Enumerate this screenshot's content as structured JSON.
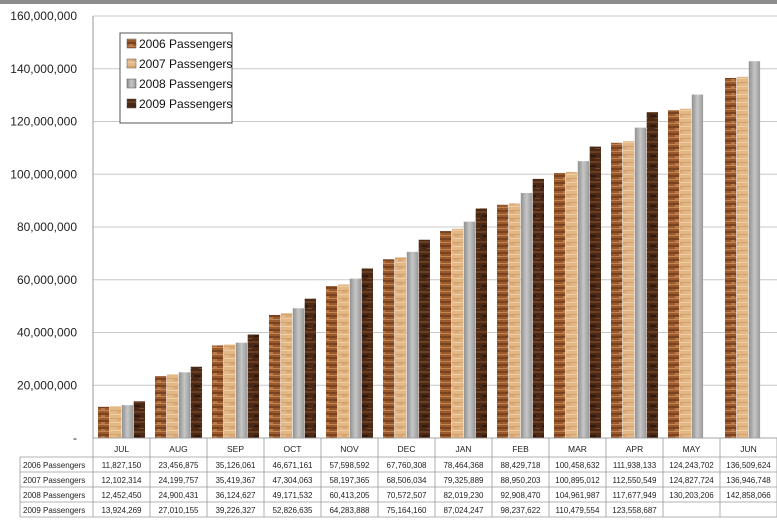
{
  "chart_data": {
    "type": "bar",
    "title": "",
    "xlabel": "",
    "ylabel": "",
    "ylim": [
      0,
      160000000
    ],
    "yticks": [
      0,
      20000000,
      40000000,
      60000000,
      80000000,
      100000000,
      120000000,
      140000000,
      160000000
    ],
    "ytick_labels": [
      "-",
      "20,000,000",
      "40,000,000",
      "60,000,000",
      "80,000,000",
      "100,000,000",
      "120,000,000",
      "140,000,000",
      "160,000,000"
    ],
    "grid": true,
    "legend_position": "top-left",
    "categories": [
      "JUL",
      "AUG",
      "SEP",
      "OCT",
      "NOV",
      "DEC",
      "JAN",
      "FEB",
      "MAR",
      "APR",
      "MAY",
      "JUN"
    ],
    "series": [
      {
        "name": "2006 Passengers",
        "color": "#9a5a2e",
        "values": [
          11827150,
          23456875,
          35126061,
          46671161,
          57598592,
          67760308,
          78464368,
          88429718,
          100458632,
          111938133,
          124243702,
          136509624
        ],
        "labels": [
          "11,827,150",
          "23,456,875",
          "35,126,061",
          "46,671,161",
          "57,598,592",
          "67,760,308",
          "78,464,368",
          "88,429,718",
          "100,458,632",
          "111,938,133",
          "124,243,702",
          "136,509,624"
        ]
      },
      {
        "name": "2007 Passengers",
        "color": "#e2b887",
        "values": [
          12102314,
          24199757,
          35419367,
          47304063,
          58197365,
          68506034,
          79325889,
          88950203,
          100895012,
          112550549,
          124827724,
          136946748
        ],
        "labels": [
          "12,102,314",
          "24,199,757",
          "35,419,367",
          "47,304,063",
          "58,197,365",
          "68,506,034",
          "79,325,889",
          "88,950,203",
          "100,895,012",
          "112,550,549",
          "124,827,724",
          "136,946,748"
        ]
      },
      {
        "name": "2008 Passengers",
        "color": "#a8a8a8",
        "values": [
          12452450,
          24900431,
          36124627,
          49171532,
          60413205,
          70572507,
          82019230,
          92908470,
          104961987,
          117677949,
          130203206,
          142858066
        ],
        "labels": [
          "12,452,450",
          "24,900,431",
          "36,124,627",
          "49,171,532",
          "60,413,205",
          "70,572,507",
          "82,019,230",
          "92,908,470",
          "104,961,987",
          "117,677,949",
          "130,203,206",
          "142,858,066"
        ]
      },
      {
        "name": "2009 Passengers",
        "color": "#4a2a16",
        "values": [
          13924269,
          27010155,
          39226327,
          52826635,
          64283888,
          75164160,
          87024247,
          98237622,
          110479554,
          123558687,
          null,
          null
        ],
        "labels": [
          "13,924,269",
          "27,010,155",
          "39,226,327",
          "52,826,635",
          "64,283,888",
          "75,164,160",
          "87,024,247",
          "98,237,622",
          "110,479,554",
          "123,558,687",
          "",
          ""
        ]
      }
    ]
  }
}
